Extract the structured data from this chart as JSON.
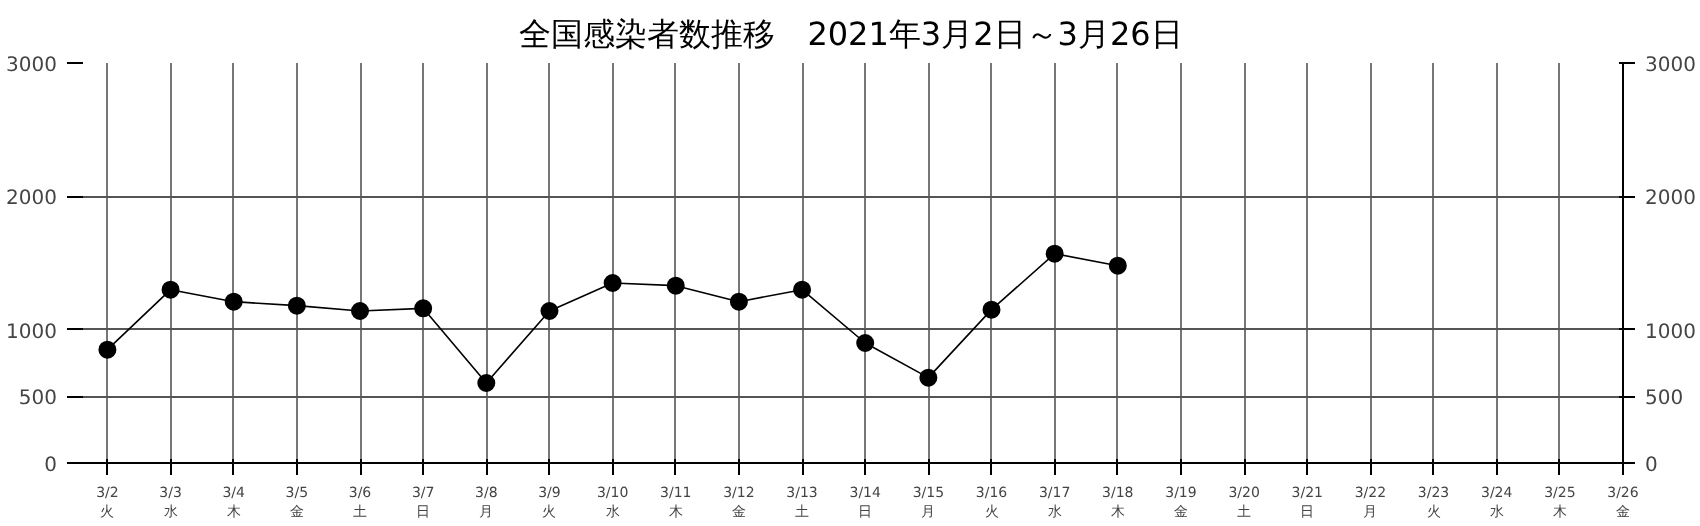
{
  "chart_data": {
    "type": "line",
    "title": "全国感染者数推移　2021年3月2日～3月26日",
    "categories": [
      "3/2\n火",
      "3/3\n水",
      "3/4\n木",
      "3/5\n金",
      "3/6\n土",
      "3/7\n日",
      "3/8\n月",
      "3/9\n火",
      "3/10\n水",
      "3/11\n木",
      "3/12\n金",
      "3/13\n土",
      "3/14\n日",
      "3/15\n月",
      "3/16\n火",
      "3/17\n水",
      "3/18\n木",
      "3/19\n金",
      "3/20\n土",
      "3/21\n日",
      "3/22\n月",
      "3/23\n火",
      "3/24\n水",
      "3/25\n木",
      "3/26\n金"
    ],
    "series": [
      {
        "color": "#000000",
        "values": [
          850,
          1300,
          1210,
          1180,
          1140,
          1160,
          600,
          1140,
          1350,
          1330,
          1210,
          1300,
          900,
          640,
          1150,
          1570,
          1480,
          null,
          null,
          null,
          null,
          null,
          null,
          null,
          null
        ]
      }
    ],
    "ylim": [
      0,
      3000
    ],
    "yticks": [
      0,
      500,
      1000,
      2000,
      3000
    ],
    "y2lim": [
      0,
      3000
    ],
    "y2ticks": [
      0,
      500,
      1000,
      2000,
      3000
    ],
    "grid": true,
    "marker": "circle",
    "line_style": "solid"
  }
}
